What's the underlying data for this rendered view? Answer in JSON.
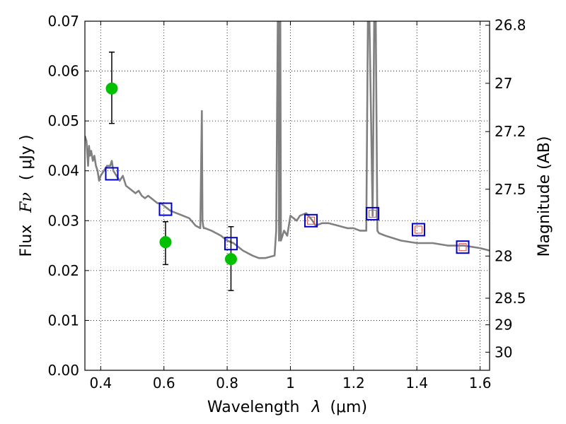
{
  "chart_data": {
    "type": "scatter",
    "xlabel_text": "Wavelength",
    "xlabel_symbol": "λ",
    "xlabel_unit": "(μm)",
    "ylabel_text": "Flux",
    "ylabel_symbol": "Fν",
    "ylabel_unit": "( μJy )",
    "y2label": "Magnitude (AB)",
    "xlim": [
      0.35,
      1.63
    ],
    "ylim": [
      0.0,
      0.07
    ],
    "grid": true,
    "x_ticks": [
      {
        "value": 0.4,
        "label": "0.4"
      },
      {
        "value": 0.6,
        "label": "0.6"
      },
      {
        "value": 0.8,
        "label": "0.8"
      },
      {
        "value": 1.0,
        "label": "1"
      },
      {
        "value": 1.2,
        "label": "1.2"
      },
      {
        "value": 1.4,
        "label": "1.4"
      },
      {
        "value": 1.6,
        "label": "1.6"
      }
    ],
    "y_ticks": [
      {
        "value": 0.0,
        "label": "0.00"
      },
      {
        "value": 0.01,
        "label": "0.01"
      },
      {
        "value": 0.02,
        "label": "0.02"
      },
      {
        "value": 0.03,
        "label": "0.03"
      },
      {
        "value": 0.04,
        "label": "0.04"
      },
      {
        "value": 0.05,
        "label": "0.05"
      },
      {
        "value": 0.06,
        "label": "0.06"
      },
      {
        "value": 0.07,
        "label": "0.07"
      }
    ],
    "mag_ticks": [
      {
        "mag": 26.8,
        "label": "26.8"
      },
      {
        "mag": 27.0,
        "label": "27"
      },
      {
        "mag": 27.2,
        "label": "27.2"
      },
      {
        "mag": 27.5,
        "label": "27.5"
      },
      {
        "mag": 28.0,
        "label": "28"
      },
      {
        "mag": 28.5,
        "label": "28.5"
      },
      {
        "mag": 29.0,
        "label": "29"
      },
      {
        "mag": 30.0,
        "label": "30"
      }
    ],
    "series": [
      {
        "name": "model SED",
        "kind": "line",
        "color": "#808080",
        "x": [
          0.35,
          0.355,
          0.36,
          0.363,
          0.366,
          0.37,
          0.375,
          0.38,
          0.385,
          0.39,
          0.395,
          0.4,
          0.41,
          0.42,
          0.43,
          0.435,
          0.44,
          0.45,
          0.46,
          0.47,
          0.48,
          0.49,
          0.5,
          0.51,
          0.52,
          0.53,
          0.54,
          0.55,
          0.56,
          0.57,
          0.58,
          0.59,
          0.6,
          0.62,
          0.64,
          0.66,
          0.68,
          0.7,
          0.715,
          0.72,
          0.722,
          0.724,
          0.726,
          0.73,
          0.75,
          0.78,
          0.8,
          0.82,
          0.85,
          0.88,
          0.9,
          0.92,
          0.95,
          0.955,
          0.96,
          0.962,
          0.964,
          0.966,
          0.968,
          0.97,
          0.98,
          0.99,
          1.0,
          1.01,
          1.02,
          1.03,
          1.05,
          1.07,
          1.08,
          1.1,
          1.12,
          1.15,
          1.18,
          1.2,
          1.22,
          1.24,
          1.245,
          1.25,
          1.26,
          1.265,
          1.27,
          1.275,
          1.28,
          1.3,
          1.35,
          1.4,
          1.45,
          1.5,
          1.55,
          1.6,
          1.63
        ],
        "y": [
          0.047,
          0.046,
          0.041,
          0.045,
          0.043,
          0.044,
          0.042,
          0.043,
          0.041,
          0.04,
          0.038,
          0.039,
          0.04,
          0.041,
          0.041,
          0.042,
          0.04,
          0.039,
          0.038,
          0.039,
          0.037,
          0.0365,
          0.036,
          0.0355,
          0.036,
          0.035,
          0.0345,
          0.035,
          0.0345,
          0.034,
          0.0335,
          0.0335,
          0.033,
          0.032,
          0.0315,
          0.031,
          0.0305,
          0.029,
          0.0285,
          0.052,
          0.03,
          0.029,
          0.0285,
          0.0285,
          0.028,
          0.027,
          0.026,
          0.0255,
          0.024,
          0.023,
          0.0225,
          0.0225,
          0.023,
          0.028,
          0.07,
          0.07,
          0.026,
          0.07,
          0.07,
          0.026,
          0.028,
          0.027,
          0.031,
          0.0305,
          0.03,
          0.031,
          0.0315,
          0.03,
          0.029,
          0.0295,
          0.0295,
          0.029,
          0.0285,
          0.0285,
          0.028,
          0.028,
          0.07,
          0.07,
          0.031,
          0.07,
          0.07,
          0.028,
          0.0275,
          0.027,
          0.026,
          0.0255,
          0.0255,
          0.025,
          0.025,
          0.0245,
          0.024
        ]
      },
      {
        "name": "observed photometry",
        "kind": "points_with_errors",
        "color": "#00c000",
        "x": [
          0.435,
          0.605,
          0.812
        ],
        "y": [
          0.0565,
          0.0257,
          0.0223
        ],
        "yerr_low": [
          0.0495,
          0.0212,
          0.016
        ],
        "yerr_high": [
          0.0638,
          0.0298,
          0.0288
        ]
      },
      {
        "name": "model photometry",
        "kind": "open_squares",
        "color": "#0000cc",
        "x": [
          0.435,
          0.605,
          0.812,
          1.065,
          1.26,
          1.405,
          1.545
        ],
        "y": [
          0.0394,
          0.0323,
          0.0254,
          0.03,
          0.0314,
          0.0282,
          0.0247
        ]
      },
      {
        "name": "model photometry (inner)",
        "kind": "small_open_squares",
        "color": "#e06060",
        "x": [
          1.065,
          1.26,
          1.405,
          1.545
        ],
        "y": [
          0.03,
          0.0314,
          0.0282,
          0.0247
        ]
      }
    ]
  }
}
